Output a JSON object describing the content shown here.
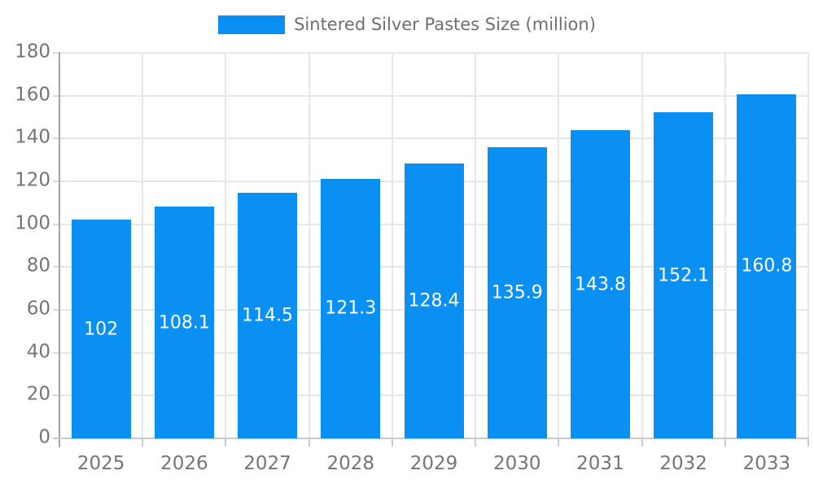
{
  "page": {
    "background": "#ffffff"
  },
  "legend": {
    "label": "Sintered Silver Pastes Size (million)",
    "swatch_color": "#0990f2"
  },
  "chart_data": {
    "type": "bar",
    "title": "Sintered Silver Pastes Size (million)",
    "categories": [
      "2025",
      "2026",
      "2027",
      "2028",
      "2029",
      "2030",
      "2031",
      "2032",
      "2033"
    ],
    "series": [
      {
        "name": "Sintered Silver Pastes Size (million)",
        "values": [
          102,
          108.1,
          114.5,
          121.3,
          128.4,
          135.9,
          143.8,
          152.1,
          160.8
        ]
      }
    ],
    "xlabel": "",
    "ylabel": "",
    "ylim": [
      0,
      180
    ],
    "ytick_step": 20,
    "grid": true,
    "legend_position": "top",
    "bar_color": "#0990f2",
    "value_label_color": "#ffffff",
    "value_labels_inside_bars": true,
    "axis_text_color": "#757575"
  }
}
